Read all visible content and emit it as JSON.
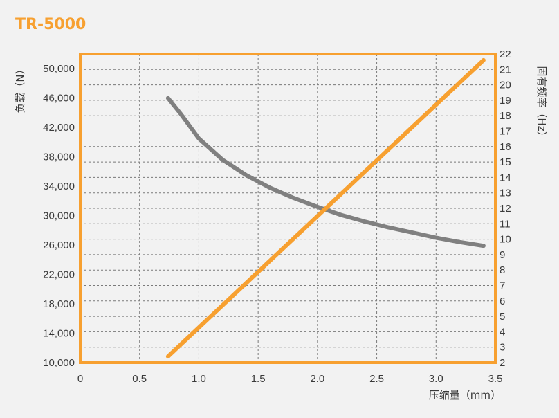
{
  "colors": {
    "accent": "#f7a030",
    "load_curve": "#808080",
    "grid": "#7a7a7a",
    "background": "#f2f2f2",
    "text": "#3a3a3a"
  },
  "chart_data": {
    "type": "line",
    "title": "TR-5000",
    "xlabel": "压缩量（mm）",
    "ylabel_left": "负载（N）",
    "ylabel_right": "固有频率（Hz）",
    "xlim": [
      0,
      3.5
    ],
    "ylim_left": [
      10000,
      52000
    ],
    "ylim_right": [
      2,
      22
    ],
    "grid": true,
    "x_ticks": [
      "0",
      "0.5",
      "1.0",
      "1.5",
      "2.0",
      "2.5",
      "3.0",
      "3.5"
    ],
    "y_left_ticks": [
      "10,000",
      "14,000",
      "18,000",
      "22,000",
      "26,000",
      "30,000",
      "34,000",
      "38,000",
      "42,000",
      "46,000",
      "50,000"
    ],
    "y_right_ticks": [
      "2",
      "3",
      "4",
      "5",
      "6",
      "7",
      "8",
      "9",
      "10",
      "11",
      "12",
      "13",
      "14",
      "15",
      "16",
      "17",
      "18",
      "19",
      "20",
      "21",
      "22"
    ],
    "series": [
      {
        "axis": "left",
        "x": [
          0.74,
          0.85,
          1.0,
          1.2,
          1.4,
          1.6,
          1.8,
          2.0,
          2.2,
          2.4,
          2.6,
          2.8,
          3.0,
          3.2,
          3.4
        ],
        "y": [
          46000,
          43800,
          40500,
          37600,
          35500,
          33800,
          32400,
          31200,
          30100,
          29200,
          28400,
          27700,
          27000,
          26400,
          25900
        ]
      },
      {
        "axis": "right",
        "x": [
          0.74,
          3.4
        ],
        "y": [
          2.4,
          21.6
        ]
      }
    ]
  }
}
